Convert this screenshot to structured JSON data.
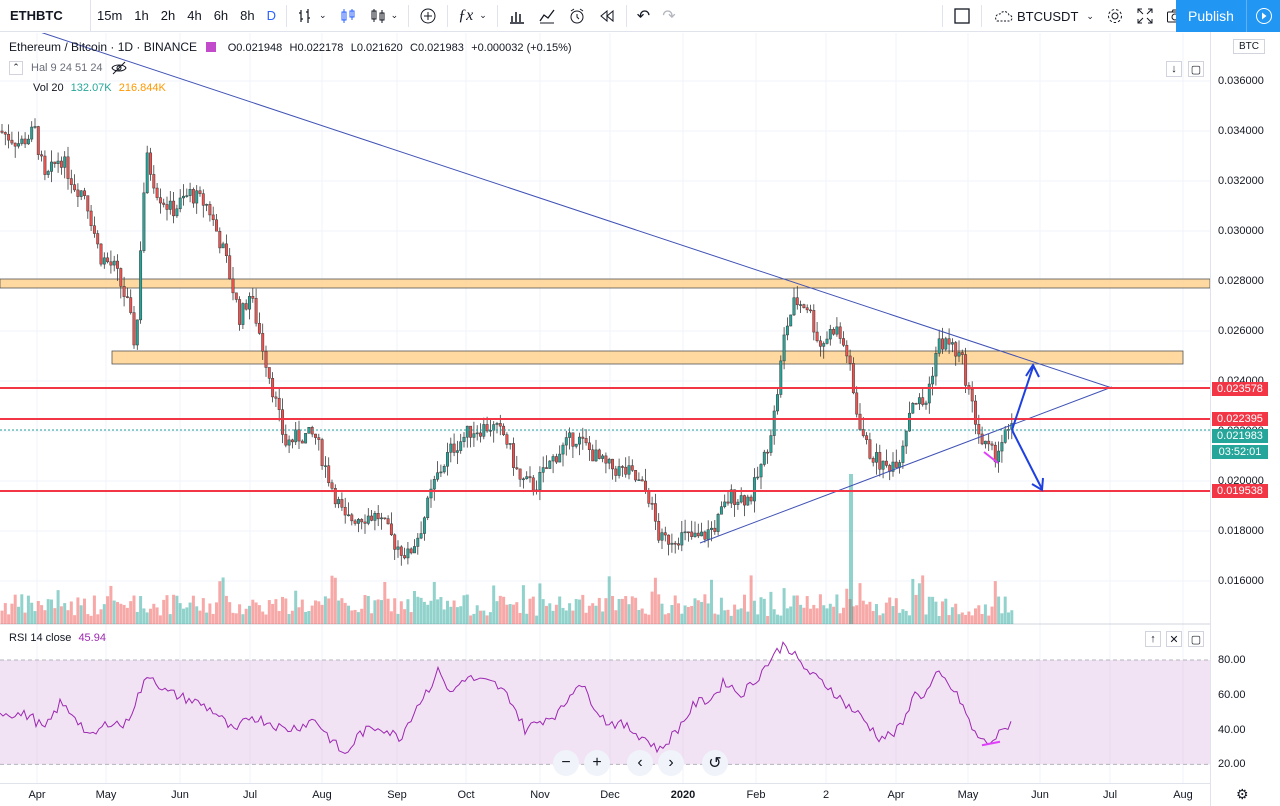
{
  "toolbar": {
    "symbol": "ETHBTC",
    "intervals": [
      "15m",
      "1h",
      "2h",
      "4h",
      "6h",
      "8h",
      "D"
    ],
    "active_interval": "D",
    "compare_symbol": "BTCUSDT",
    "publish_label": "Publish"
  },
  "legend": {
    "title": "Ethereum / Bitcoin · 1D · BINANCE",
    "open": "O0.021948",
    "high": "H0.022178",
    "low": "L0.021620",
    "close": "C0.021983",
    "change": "+0.000032 (+0.15%)",
    "indicator_hal": "Hal 9 24 51 24",
    "vol_label": "Vol 20",
    "vol_value_1": "132.07K",
    "vol_value_2": "216.844K",
    "rsi_label": "RSI 14 close",
    "rsi_value": "45.94"
  },
  "price_scale": {
    "currency": "BTC",
    "ticks": [
      "0.036000",
      "0.034000",
      "0.032000",
      "0.030000",
      "0.028000",
      "0.026000",
      "0.024000",
      "0.022000",
      "0.020000",
      "0.018000",
      "0.016000"
    ],
    "labels": [
      {
        "text": "0.023578",
        "color": "#f23645"
      },
      {
        "text": "0.022395",
        "color": "#f23645"
      },
      {
        "text": "0.021983",
        "color": "#26a69a"
      },
      {
        "text": "03:52:01",
        "color": "#26a69a"
      },
      {
        "text": "0.019538",
        "color": "#f23645"
      }
    ],
    "rsi_ticks": [
      "80.00",
      "60.00",
      "40.00",
      "20.00"
    ]
  },
  "time_axis": {
    "labels": [
      "Apr",
      "May",
      "Jun",
      "Jul",
      "Aug",
      "Sep",
      "Oct",
      "Nov",
      "Dec",
      "2020",
      "Feb",
      "2",
      "Apr",
      "May",
      "Jun",
      "Jul",
      "Aug"
    ]
  },
  "colors": {
    "up": "#26a69a",
    "down": "#ef5350",
    "trendline": "#3f51b5",
    "zone_fill": "#ffcc80",
    "red_line": "#f23645",
    "rsi_line": "#9c27b0",
    "rsi_band": "#e1bee7"
  },
  "nav": {
    "zoom_out": "−",
    "zoom_in": "+",
    "prev": "‹",
    "next": "›",
    "reset": "↺"
  }
}
